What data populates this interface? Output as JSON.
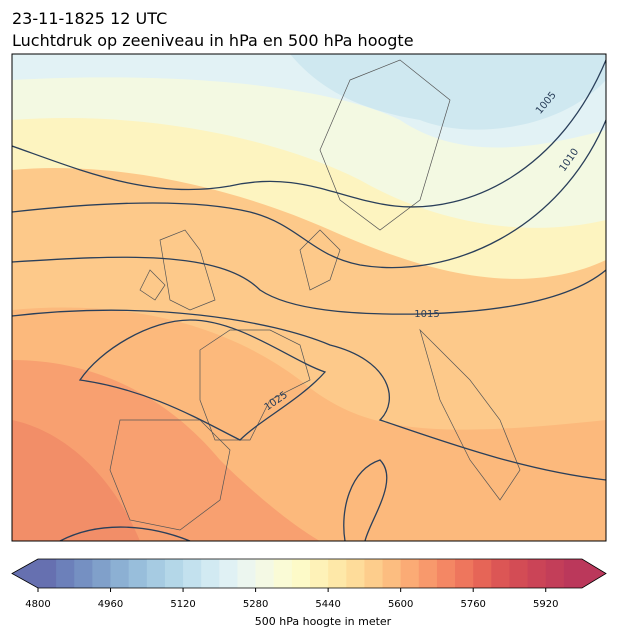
{
  "header": {
    "title": [
      "23-11-1825 12 UTC",
      "Luchtdruk op zeeniveau in hPa en 500 hPa hoogte"
    ]
  },
  "map": {
    "isobar_labels": [
      "1005",
      "1010",
      "1015",
      "1025"
    ]
  },
  "colorbar": {
    "range": [
      4800,
      6000
    ],
    "ticks": [
      4800,
      4960,
      5120,
      5280,
      5440,
      5600,
      5760,
      5920
    ],
    "extend": "both",
    "label": "500 hPa hoogte in meter",
    "colors": [
      "#6670b0",
      "#6c80ba",
      "#7590c2",
      "#80a0ca",
      "#8cb0d3",
      "#98bedb",
      "#a6cbe2",
      "#b4d7e8",
      "#c3e1ee",
      "#d2eaf2",
      "#e0f1f4",
      "#ecf6ef",
      "#f4f9e4",
      "#fafbd6",
      "#fdfac8",
      "#fef2b8",
      "#fee8a8",
      "#fedc9a",
      "#fdcd8c",
      "#fcbd80",
      "#fbab75",
      "#f8996c",
      "#f48764",
      "#ee765d",
      "#e66557",
      "#dc5655",
      "#d34c55",
      "#cb4457",
      "#c33e59",
      "#bb385b"
    ]
  }
}
